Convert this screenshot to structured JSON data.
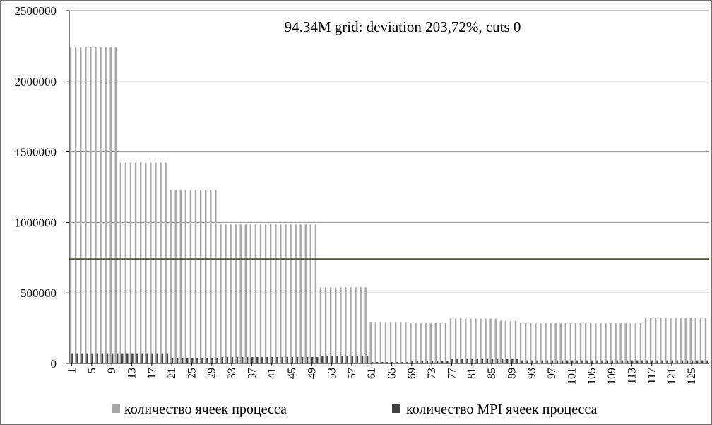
{
  "chart_data": {
    "type": "bar",
    "title": "94.34M grid: deviation 203,72%, cuts 0",
    "xlabel": "",
    "ylabel": "",
    "ylim": [
      0,
      2500000
    ],
    "yticks": [
      0,
      500000,
      1000000,
      1500000,
      2000000,
      2500000
    ],
    "ytick_labels": [
      "0",
      "500000",
      "1000000",
      "1500000",
      "2000000",
      "2500000"
    ],
    "xtick_labels": [
      "1",
      "5",
      "9",
      "13",
      "17",
      "21",
      "25",
      "29",
      "33",
      "37",
      "41",
      "45",
      "49",
      "53",
      "57",
      "61",
      "65",
      "69",
      "73",
      "77",
      "81",
      "85",
      "89",
      "93",
      "97",
      "101",
      "105",
      "109",
      "113",
      "117",
      "121",
      "125"
    ],
    "categories_count": 128,
    "grid": true,
    "legend_position": "bottom",
    "average_line": 740000,
    "colors": {
      "cells": "#a6a6a6",
      "mpi": "#404040",
      "average": "#4f5b2a",
      "grid": "#8c8c8c",
      "axis": "#000000"
    },
    "series": [
      {
        "name": "количество ячеек процесса",
        "segments": [
          {
            "from": 1,
            "to": 10,
            "value": 2240000
          },
          {
            "from": 11,
            "to": 20,
            "value": 1425000
          },
          {
            "from": 21,
            "to": 30,
            "value": 1230000
          },
          {
            "from": 31,
            "to": 50,
            "value": 985000
          },
          {
            "from": 51,
            "to": 60,
            "value": 540000
          },
          {
            "from": 61,
            "to": 68,
            "value": 290000
          },
          {
            "from": 69,
            "to": 76,
            "value": 285000
          },
          {
            "from": 77,
            "to": 86,
            "value": 318000
          },
          {
            "from": 87,
            "to": 90,
            "value": 302000
          },
          {
            "from": 91,
            "to": 115,
            "value": 285000
          },
          {
            "from": 116,
            "to": 128,
            "value": 322000
          }
        ]
      },
      {
        "name": "количество MPI ячеек процесса",
        "segments": [
          {
            "from": 1,
            "to": 20,
            "value": 72000
          },
          {
            "from": 21,
            "to": 30,
            "value": 40000
          },
          {
            "from": 31,
            "to": 50,
            "value": 45000
          },
          {
            "from": 51,
            "to": 60,
            "value": 55000
          },
          {
            "from": 61,
            "to": 68,
            "value": 10000
          },
          {
            "from": 69,
            "to": 76,
            "value": 18000
          },
          {
            "from": 77,
            "to": 90,
            "value": 30000
          },
          {
            "from": 91,
            "to": 128,
            "value": 22000
          }
        ]
      }
    ]
  }
}
